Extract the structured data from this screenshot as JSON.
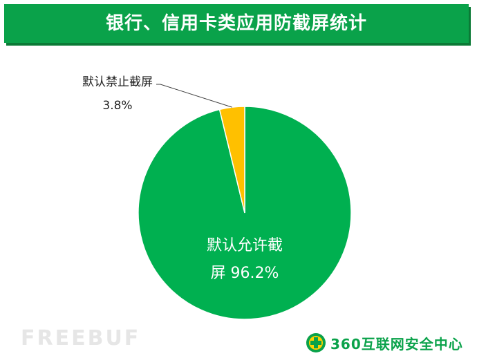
{
  "title": "银行、信用卡类应用防截屏统计",
  "brand": {
    "text": "360互联网安全中心",
    "icon": "360-shield-logo"
  },
  "watermark": "FREEBUF",
  "colors": {
    "title_bg": "#0aa24a",
    "allow": "#00b050",
    "deny": "#ffc000"
  },
  "chart_data": {
    "type": "pie",
    "slices": [
      {
        "label_lines": [
          "默认允许截",
          "屏 96.2%"
        ],
        "value": 96.2,
        "color": "#00b050"
      },
      {
        "label_lines": [
          "默认禁止截屏",
          "3.8%"
        ],
        "value": 3.8,
        "color": "#ffc000"
      }
    ]
  }
}
